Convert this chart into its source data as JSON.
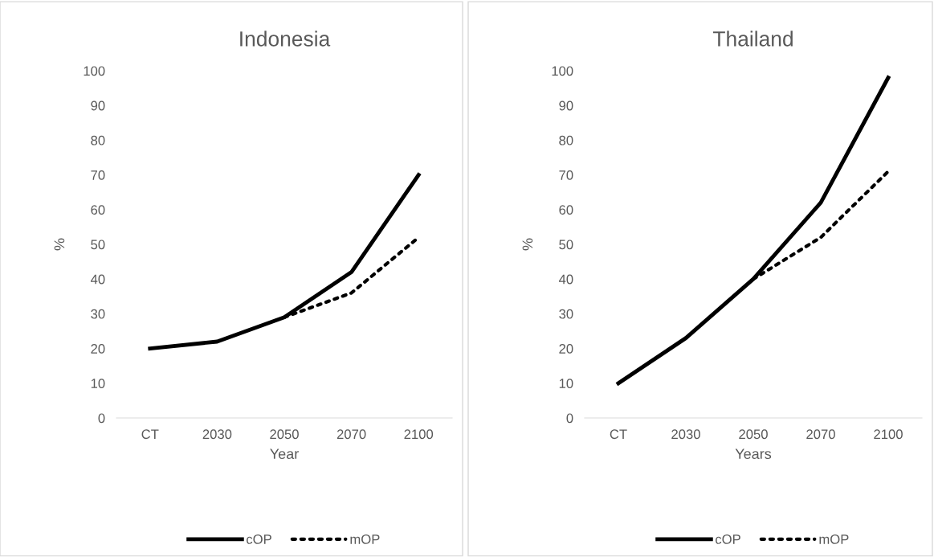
{
  "chart_data": [
    {
      "type": "line",
      "title": "Indonesia",
      "xlabel": "Year",
      "ylabel": "%",
      "categories": [
        "CT",
        "2030",
        "2050",
        "2070",
        "2100"
      ],
      "ylim": [
        0,
        100
      ],
      "yticks": [
        0,
        10,
        20,
        30,
        40,
        50,
        60,
        70,
        80,
        90,
        100
      ],
      "legend": "bottom",
      "grid": false,
      "series": [
        {
          "name": "cOP",
          "color": "#000000",
          "line_style": "solid",
          "values": [
            20,
            22,
            29,
            42,
            70
          ]
        },
        {
          "name": "mOP",
          "color": "#000000",
          "line_style": "dotted",
          "values": [
            null,
            null,
            29,
            36,
            52
          ]
        }
      ]
    },
    {
      "type": "line",
      "title": "Thailand",
      "xlabel": "Years",
      "ylabel": "%",
      "categories": [
        "CT",
        "2030",
        "2050",
        "2070",
        "2100"
      ],
      "ylim": [
        0,
        100
      ],
      "yticks": [
        0,
        10,
        20,
        30,
        40,
        50,
        60,
        70,
        80,
        90,
        100
      ],
      "legend": "bottom",
      "grid": false,
      "series": [
        {
          "name": "cOP",
          "color": "#000000",
          "line_style": "solid",
          "values": [
            10,
            23,
            40,
            62,
            98
          ]
        },
        {
          "name": "mOP",
          "color": "#000000",
          "line_style": "dotted",
          "values": [
            null,
            null,
            40,
            52,
            71
          ]
        }
      ]
    }
  ]
}
